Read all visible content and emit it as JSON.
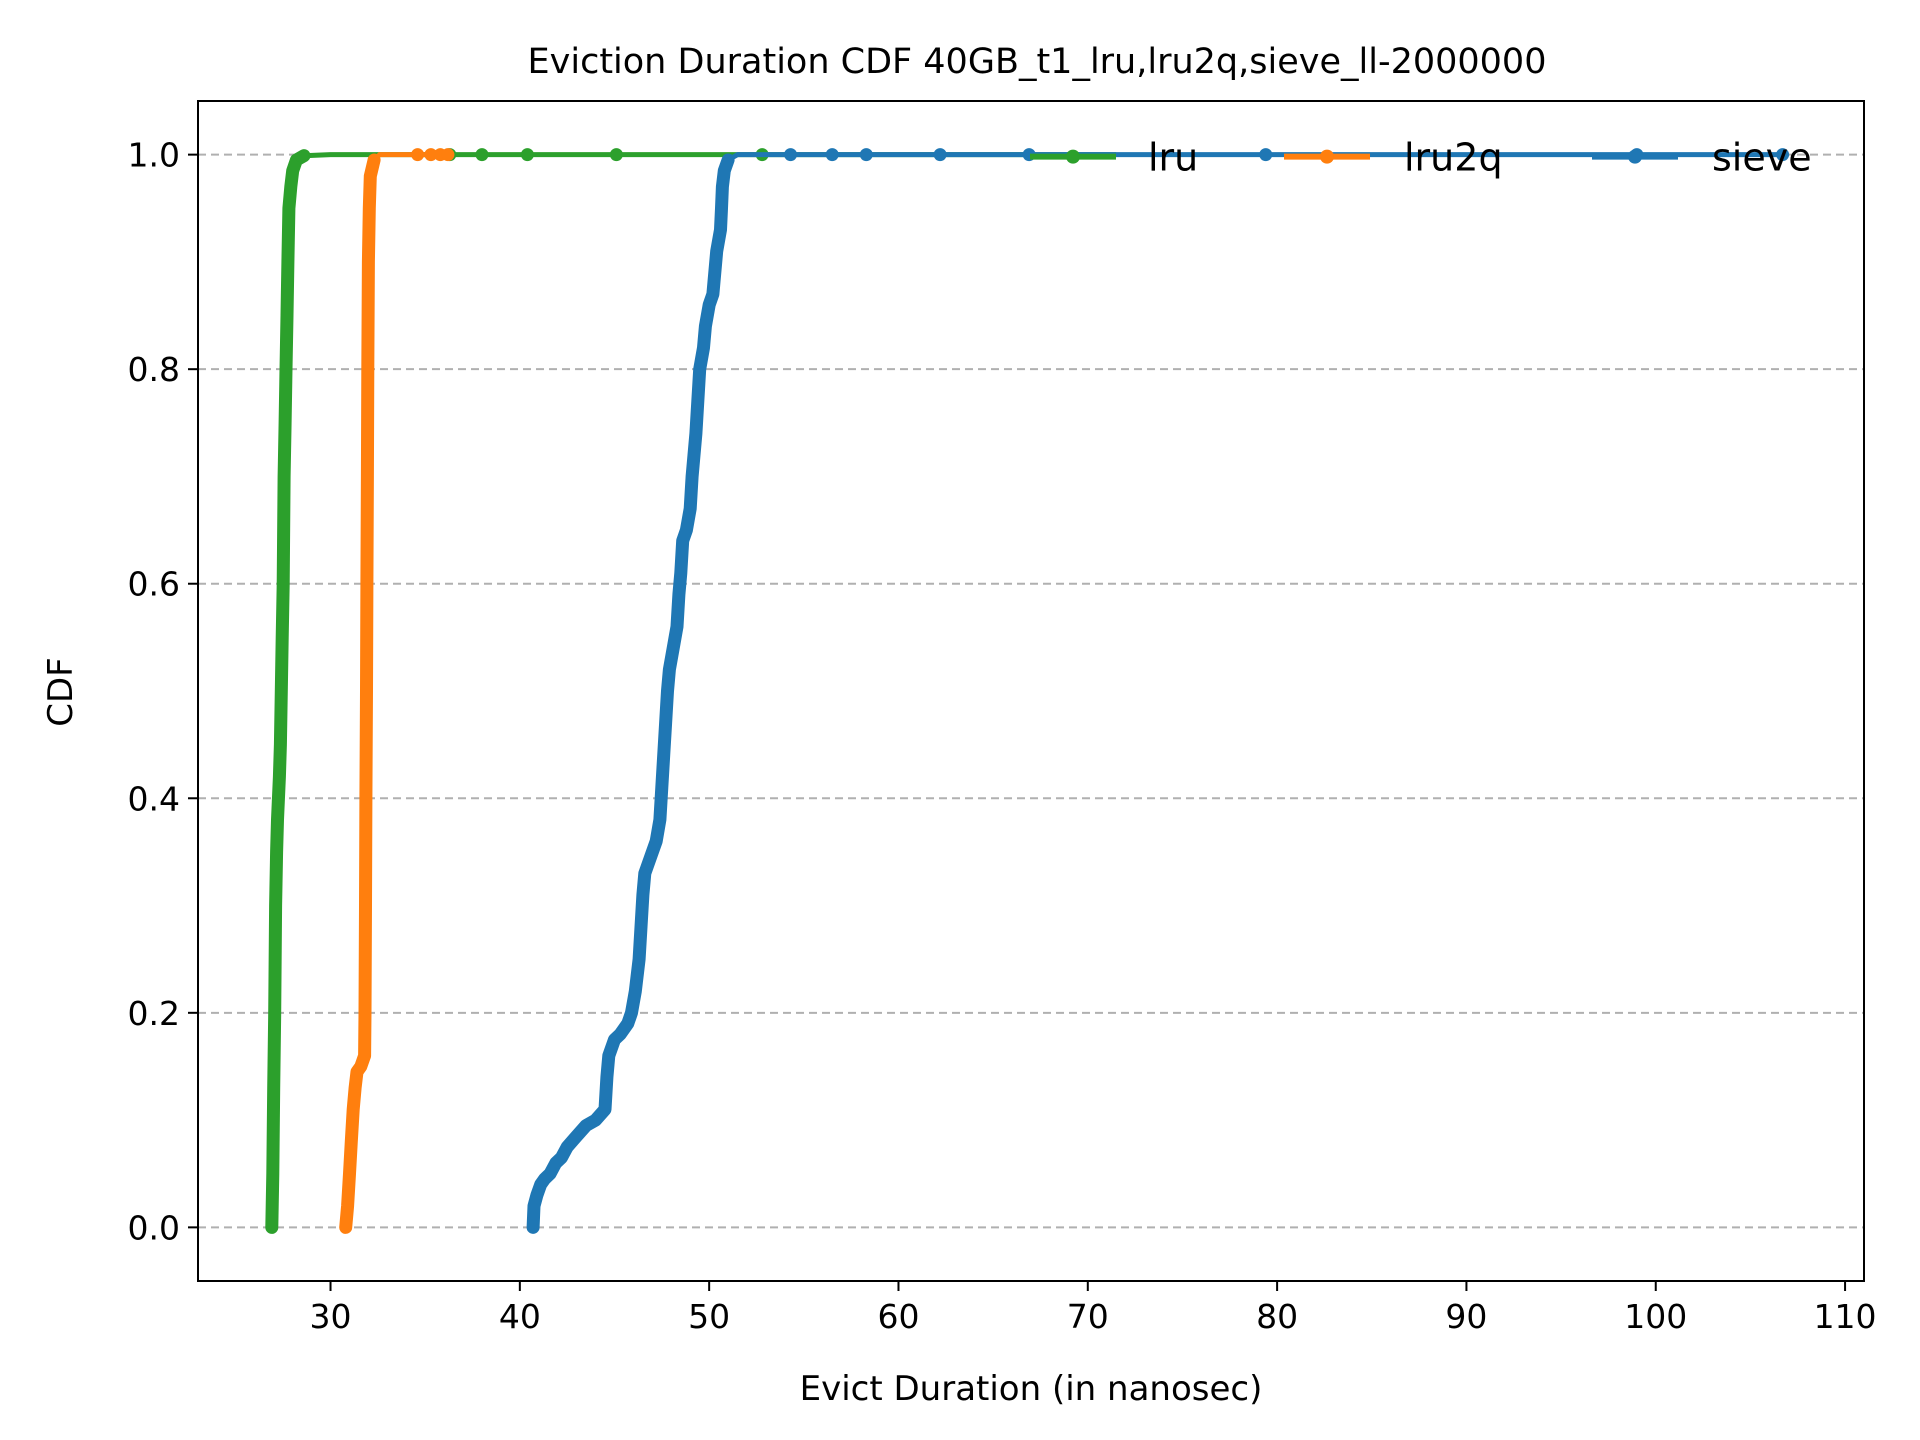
{
  "chart_data": {
    "type": "line",
    "title": "Eviction Duration CDF 40GB_t1_lru,lru2q,sieve_ll-2000000",
    "xlabel": "Evict Duration (in nanosec)",
    "ylabel": "CDF",
    "xlim": [
      23,
      111
    ],
    "ylim": [
      -0.05,
      1.05
    ],
    "xticks": [
      30,
      40,
      50,
      60,
      70,
      80,
      90,
      100,
      110
    ],
    "xtick_labels": [
      "30",
      "40",
      "50",
      "60",
      "70",
      "80",
      "90",
      "100",
      "110"
    ],
    "yticks": [
      0.0,
      0.2,
      0.4,
      0.6,
      0.8,
      1.0
    ],
    "ytick_labels": [
      "0.0",
      "0.2",
      "0.4",
      "0.6",
      "0.8",
      "1.0"
    ],
    "grid": "y-dashed",
    "legend_placement": "top-right",
    "series": [
      {
        "name": "lru",
        "color": "#2ca02c",
        "points": [
          [
            26.9,
            0.0
          ],
          [
            26.95,
            0.05
          ],
          [
            27.0,
            0.13
          ],
          [
            27.05,
            0.2
          ],
          [
            27.1,
            0.3
          ],
          [
            27.15,
            0.35
          ],
          [
            27.2,
            0.38
          ],
          [
            27.3,
            0.42
          ],
          [
            27.35,
            0.45
          ],
          [
            27.4,
            0.5
          ],
          [
            27.45,
            0.55
          ],
          [
            27.5,
            0.6
          ],
          [
            27.55,
            0.7
          ],
          [
            27.6,
            0.75
          ],
          [
            27.65,
            0.8
          ],
          [
            27.7,
            0.85
          ],
          [
            27.75,
            0.9
          ],
          [
            27.8,
            0.95
          ],
          [
            27.9,
            0.97
          ],
          [
            28.0,
            0.985
          ],
          [
            28.2,
            0.995
          ],
          [
            28.6,
            0.999
          ],
          [
            30.0,
            1.0
          ],
          [
            36.3,
            1.0
          ],
          [
            38.0,
            1.0
          ],
          [
            40.4,
            1.0
          ],
          [
            45.1,
            1.0
          ],
          [
            52.8,
            1.0
          ],
          [
            71.5,
            1.0
          ]
        ],
        "tail_markers": [
          36.3,
          38.0,
          40.4,
          45.1,
          52.8
        ]
      },
      {
        "name": "lru2q",
        "color": "#ff7f0e",
        "points": [
          [
            30.8,
            0.0
          ],
          [
            30.9,
            0.02
          ],
          [
            31.0,
            0.05
          ],
          [
            31.1,
            0.08
          ],
          [
            31.2,
            0.11
          ],
          [
            31.3,
            0.13
          ],
          [
            31.4,
            0.145
          ],
          [
            31.6,
            0.15
          ],
          [
            31.8,
            0.16
          ],
          [
            31.82,
            0.2
          ],
          [
            31.85,
            0.3
          ],
          [
            31.87,
            0.4
          ],
          [
            31.9,
            0.5
          ],
          [
            31.92,
            0.6
          ],
          [
            31.95,
            0.7
          ],
          [
            31.97,
            0.8
          ],
          [
            32.0,
            0.9
          ],
          [
            32.05,
            0.95
          ],
          [
            32.1,
            0.98
          ],
          [
            32.3,
            0.995
          ],
          [
            32.6,
            1.0
          ],
          [
            34.0,
            1.0
          ],
          [
            34.6,
            1.0
          ],
          [
            35.3,
            1.0
          ],
          [
            35.8,
            1.0
          ],
          [
            36.2,
            1.0
          ]
        ],
        "tail_markers": [
          34.6,
          35.3,
          35.8,
          36.2
        ]
      },
      {
        "name": "sieve",
        "color": "#1f77b4",
        "points": [
          [
            40.7,
            0.0
          ],
          [
            40.75,
            0.02
          ],
          [
            40.9,
            0.03
          ],
          [
            41.1,
            0.04
          ],
          [
            41.3,
            0.045
          ],
          [
            41.6,
            0.05
          ],
          [
            41.9,
            0.06
          ],
          [
            42.2,
            0.065
          ],
          [
            42.5,
            0.075
          ],
          [
            43.0,
            0.085
          ],
          [
            43.5,
            0.095
          ],
          [
            44.0,
            0.1
          ],
          [
            44.5,
            0.11
          ],
          [
            44.6,
            0.14
          ],
          [
            44.7,
            0.16
          ],
          [
            45.0,
            0.175
          ],
          [
            45.3,
            0.18
          ],
          [
            45.7,
            0.19
          ],
          [
            45.9,
            0.2
          ],
          [
            46.1,
            0.22
          ],
          [
            46.3,
            0.25
          ],
          [
            46.4,
            0.28
          ],
          [
            46.5,
            0.31
          ],
          [
            46.6,
            0.33
          ],
          [
            46.8,
            0.34
          ],
          [
            47.2,
            0.36
          ],
          [
            47.4,
            0.38
          ],
          [
            47.5,
            0.41
          ],
          [
            47.6,
            0.44
          ],
          [
            47.7,
            0.47
          ],
          [
            47.8,
            0.5
          ],
          [
            47.9,
            0.52
          ],
          [
            48.1,
            0.54
          ],
          [
            48.3,
            0.56
          ],
          [
            48.4,
            0.59
          ],
          [
            48.5,
            0.61
          ],
          [
            48.6,
            0.64
          ],
          [
            48.8,
            0.65
          ],
          [
            49.0,
            0.67
          ],
          [
            49.1,
            0.7
          ],
          [
            49.2,
            0.72
          ],
          [
            49.3,
            0.74
          ],
          [
            49.4,
            0.77
          ],
          [
            49.5,
            0.8
          ],
          [
            49.7,
            0.82
          ],
          [
            49.8,
            0.84
          ],
          [
            50.0,
            0.86
          ],
          [
            50.2,
            0.87
          ],
          [
            50.3,
            0.89
          ],
          [
            50.4,
            0.91
          ],
          [
            50.6,
            0.93
          ],
          [
            50.65,
            0.95
          ],
          [
            50.7,
            0.97
          ],
          [
            50.8,
            0.985
          ],
          [
            51.0,
            0.995
          ],
          [
            51.5,
            1.0
          ],
          [
            54.3,
            1.0
          ],
          [
            56.5,
            1.0
          ],
          [
            58.3,
            1.0
          ],
          [
            62.2,
            1.0
          ],
          [
            66.9,
            1.0
          ],
          [
            79.4,
            1.0
          ],
          [
            99.0,
            1.0
          ],
          [
            106.7,
            1.0
          ]
        ],
        "tail_markers": [
          54.3,
          56.5,
          58.3,
          62.2,
          66.9,
          79.4,
          99.0,
          106.7
        ]
      }
    ]
  }
}
